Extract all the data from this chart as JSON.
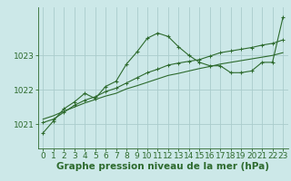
{
  "background_color": "#cce8e8",
  "grid_color": "#aacccc",
  "line_color": "#2d6a2d",
  "xlabel": "Graphe pression niveau de la mer (hPa)",
  "xlabel_fontsize": 7.5,
  "tick_fontsize": 6.5,
  "ylabel_ticks": [
    1021,
    1022,
    1023
  ],
  "xlim": [
    -0.5,
    23.5
  ],
  "ylim": [
    1020.3,
    1024.4
  ],
  "hours": [
    0,
    1,
    2,
    3,
    4,
    5,
    6,
    7,
    8,
    9,
    10,
    11,
    12,
    13,
    14,
    15,
    16,
    17,
    18,
    19,
    20,
    21,
    22,
    23
  ],
  "series1": [
    1020.75,
    1021.1,
    1021.45,
    1021.65,
    1021.9,
    1021.75,
    1022.1,
    1022.25,
    1022.75,
    1023.1,
    1023.5,
    1023.65,
    1023.55,
    1023.25,
    1023.0,
    1022.8,
    1022.7,
    1022.7,
    1022.5,
    1022.5,
    1022.55,
    1022.8,
    1022.8,
    1024.1
  ],
  "series2": [
    1021.05,
    1021.15,
    1021.35,
    1021.55,
    1021.7,
    1021.8,
    1021.95,
    1022.05,
    1022.2,
    1022.35,
    1022.5,
    1022.6,
    1022.72,
    1022.78,
    1022.83,
    1022.88,
    1022.98,
    1023.08,
    1023.13,
    1023.18,
    1023.23,
    1023.3,
    1023.35,
    1023.45
  ],
  "series3": [
    1021.15,
    1021.25,
    1021.38,
    1021.5,
    1021.62,
    1021.72,
    1021.82,
    1021.9,
    1022.03,
    1022.12,
    1022.22,
    1022.32,
    1022.42,
    1022.48,
    1022.55,
    1022.62,
    1022.68,
    1022.75,
    1022.8,
    1022.85,
    1022.9,
    1022.95,
    1023.0,
    1023.08
  ]
}
